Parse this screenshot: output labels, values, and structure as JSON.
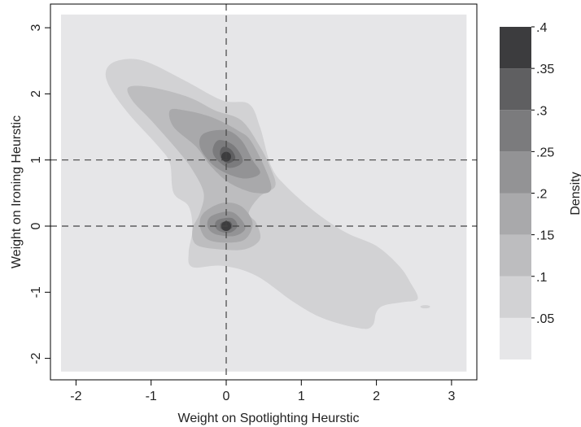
{
  "chart_data": {
    "type": "contour",
    "xlabel": "Weight on Spotlighting Heurstic",
    "ylabel": "Weight on Ironing Heurstic",
    "xlim": [
      -2.2,
      3.2
    ],
    "ylim": [
      -2.2,
      3.2
    ],
    "x_ticks": [
      "-2",
      "-1",
      "0",
      "1",
      "2",
      "3"
    ],
    "y_ticks": [
      "-2",
      "-1",
      "0",
      "1",
      "2",
      "3"
    ],
    "x_tick_values": [
      -2,
      -1,
      0,
      1,
      2,
      3
    ],
    "y_tick_values": [
      -2,
      -1,
      0,
      1,
      2,
      3
    ],
    "reference_lines": {
      "vertical_x": [
        0
      ],
      "horizontal_y": [
        0,
        1
      ]
    },
    "grid": false,
    "colorbar": {
      "label": "Density",
      "tick_labels": [
        ".05",
        ".1",
        ".15",
        ".2",
        ".25",
        ".3",
        ".35",
        ".4"
      ],
      "tick_values": [
        0.05,
        0.1,
        0.15,
        0.2,
        0.25,
        0.3,
        0.35,
        0.4
      ],
      "range": [
        0,
        0.4
      ],
      "bands": [
        {
          "from": 0.0,
          "to": 0.05,
          "color": "#e6e6e8"
        },
        {
          "from": 0.05,
          "to": 0.1,
          "color": "#d2d2d4"
        },
        {
          "from": 0.1,
          "to": 0.15,
          "color": "#bdbdbf"
        },
        {
          "from": 0.15,
          "to": 0.2,
          "color": "#a9a9ab"
        },
        {
          "from": 0.2,
          "to": 0.25,
          "color": "#939395"
        },
        {
          "from": 0.25,
          "to": 0.3,
          "color": "#7b7b7d"
        },
        {
          "from": 0.3,
          "to": 0.35,
          "color": "#5f5f61"
        },
        {
          "from": 0.35,
          "to": 0.4,
          "color": "#3c3c3e"
        }
      ]
    },
    "density_peaks": [
      {
        "x": 0.0,
        "y": 1.05,
        "level": 0.35
      },
      {
        "x": 0.0,
        "y": 0.0,
        "level": 0.35
      }
    ],
    "contours": [
      {
        "level": 0.05,
        "points": [
          [
            -1.6,
            2.35
          ],
          [
            -1.45,
            2.5
          ],
          [
            -1.1,
            2.5
          ],
          [
            -0.55,
            2.2
          ],
          [
            -0.05,
            1.9
          ],
          [
            0.3,
            1.85
          ],
          [
            0.45,
            1.5
          ],
          [
            0.6,
            0.9
          ],
          [
            0.8,
            0.6
          ],
          [
            1.2,
            0.2
          ],
          [
            1.6,
            -0.1
          ],
          [
            2.0,
            -0.3
          ],
          [
            2.3,
            -0.6
          ],
          [
            2.45,
            -0.85
          ],
          [
            2.55,
            -1.1
          ],
          [
            2.35,
            -1.15
          ],
          [
            2.1,
            -1.2
          ],
          [
            2.0,
            -1.3
          ],
          [
            1.95,
            -1.5
          ],
          [
            1.8,
            -1.55
          ],
          [
            1.3,
            -1.4
          ],
          [
            0.9,
            -1.15
          ],
          [
            0.4,
            -0.75
          ],
          [
            -0.05,
            -0.6
          ],
          [
            -0.45,
            -0.62
          ],
          [
            -0.5,
            -0.4
          ],
          [
            -0.45,
            -0.05
          ],
          [
            -0.5,
            0.3
          ],
          [
            -0.7,
            0.5
          ],
          [
            -0.75,
            0.95
          ],
          [
            -0.9,
            1.2
          ],
          [
            -1.3,
            1.7
          ],
          [
            -1.55,
            2.1
          ]
        ]
      },
      {
        "level": 0.1,
        "points": [
          [
            -1.3,
            2.1
          ],
          [
            -1.0,
            2.1
          ],
          [
            -0.5,
            1.95
          ],
          [
            -0.15,
            1.75
          ],
          [
            0.2,
            1.6
          ],
          [
            0.45,
            1.2
          ],
          [
            0.6,
            0.85
          ],
          [
            0.65,
            0.6
          ],
          [
            0.45,
            0.45
          ],
          [
            0.3,
            0.2
          ],
          [
            0.4,
            0.05
          ],
          [
            0.45,
            -0.2
          ],
          [
            0.25,
            -0.35
          ],
          [
            -0.1,
            -0.35
          ],
          [
            -0.4,
            -0.28
          ],
          [
            -0.45,
            -0.05
          ],
          [
            -0.35,
            0.2
          ],
          [
            -0.3,
            0.5
          ],
          [
            -0.45,
            0.85
          ],
          [
            -0.65,
            1.15
          ],
          [
            -1.0,
            1.6
          ],
          [
            -1.25,
            1.9
          ]
        ]
      },
      {
        "level": 0.15,
        "points": [
          [
            -0.75,
            1.75
          ],
          [
            -0.55,
            1.75
          ],
          [
            -0.2,
            1.65
          ],
          [
            0.15,
            1.45
          ],
          [
            0.35,
            1.25
          ],
          [
            0.6,
            0.6
          ],
          [
            0.4,
            0.5
          ],
          [
            0.05,
            0.65
          ],
          [
            -0.2,
            0.9
          ],
          [
            -0.4,
            1.2
          ],
          [
            -0.7,
            1.5
          ]
        ]
      },
      {
        "level": 0.15,
        "points": [
          [
            -0.3,
            0.2
          ],
          [
            -0.05,
            0.35
          ],
          [
            0.2,
            0.3
          ],
          [
            0.35,
            0.05
          ],
          [
            0.25,
            -0.2
          ],
          [
            0.0,
            -0.25
          ],
          [
            -0.25,
            -0.2
          ],
          [
            -0.35,
            0.0
          ]
        ]
      },
      {
        "level": 0.2,
        "points": [
          [
            -0.3,
            1.4
          ],
          [
            0.0,
            1.45
          ],
          [
            0.2,
            1.3
          ],
          [
            0.35,
            1.0
          ],
          [
            0.45,
            0.8
          ],
          [
            0.25,
            0.72
          ],
          [
            0.0,
            0.8
          ],
          [
            -0.2,
            0.95
          ],
          [
            -0.35,
            1.2
          ]
        ]
      },
      {
        "level": 0.2,
        "points": [
          [
            -0.2,
            0.15
          ],
          [
            0.05,
            0.22
          ],
          [
            0.2,
            0.1
          ],
          [
            0.25,
            -0.05
          ],
          [
            0.1,
            -0.15
          ],
          [
            -0.15,
            -0.12
          ],
          [
            -0.25,
            0.0
          ]
        ]
      },
      {
        "level": 0.25,
        "points": [
          [
            -0.1,
            1.3
          ],
          [
            0.1,
            1.22
          ],
          [
            0.22,
            0.98
          ],
          [
            0.05,
            0.88
          ],
          [
            -0.12,
            1.0
          ],
          [
            -0.18,
            1.15
          ]
        ]
      },
      {
        "level": 0.25,
        "points": [
          [
            -0.1,
            0.1
          ],
          [
            0.08,
            0.12
          ],
          [
            0.15,
            0.0
          ],
          [
            0.05,
            -0.1
          ],
          [
            -0.1,
            -0.07
          ],
          [
            -0.15,
            0.02
          ]
        ]
      },
      {
        "level": 0.3,
        "points": [
          [
            -0.03,
            1.2
          ],
          [
            0.07,
            1.15
          ],
          [
            0.12,
            1.02
          ],
          [
            0.02,
            0.95
          ],
          [
            -0.07,
            1.03
          ],
          [
            -0.08,
            1.14
          ]
        ]
      },
      {
        "level": 0.3,
        "points": [
          [
            -0.05,
            0.06
          ],
          [
            0.05,
            0.07
          ],
          [
            0.08,
            -0.02
          ],
          [
            0.0,
            -0.07
          ],
          [
            -0.07,
            -0.04
          ],
          [
            -0.08,
            0.02
          ]
        ]
      }
    ]
  }
}
